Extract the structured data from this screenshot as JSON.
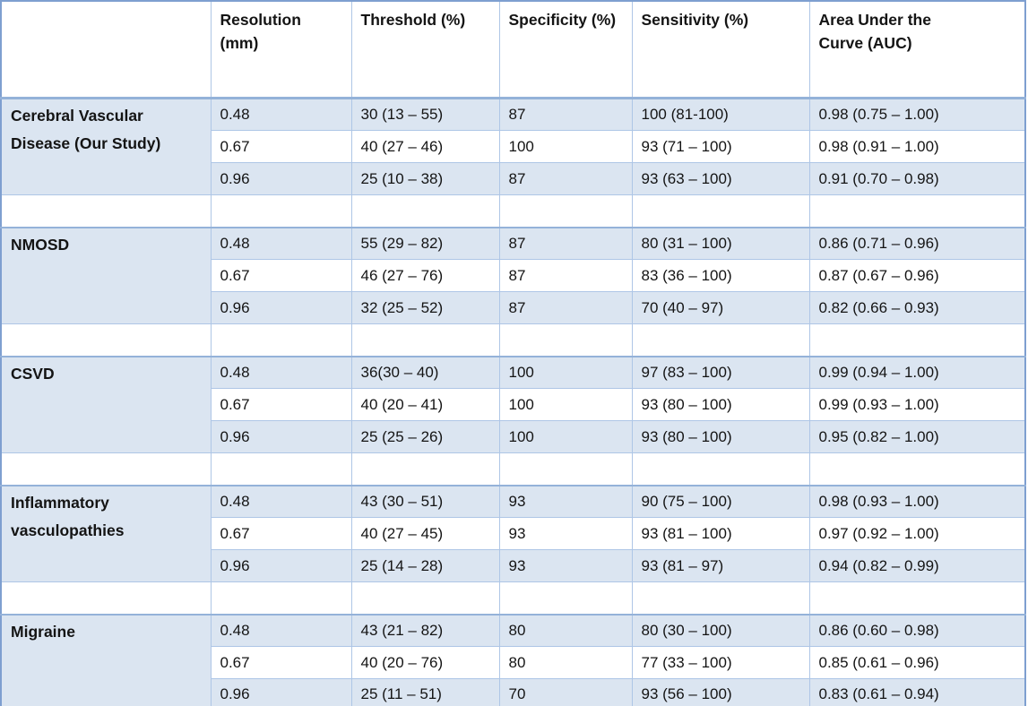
{
  "table": {
    "columns": [
      "",
      "Resolution (mm)",
      "Threshold (%)",
      "Specificity (%)",
      "Sensitivity (%)",
      "Area Under the Curve (AUC)"
    ],
    "groups": [
      {
        "label": "Cerebral Vascular Disease (Our Study)",
        "rows": [
          [
            "0.48",
            "30 (13 – 55)",
            "87",
            "100 (81-100)",
            "0.98 (0.75 – 1.00)"
          ],
          [
            "0.67",
            "40 (27 – 46)",
            "100",
            "93 (71 – 100)",
            "0.98 (0.91 – 1.00)"
          ],
          [
            "0.96",
            "25 (10 – 38)",
            "87",
            "93 (63 – 100)",
            "0.91 (0.70 – 0.98)"
          ]
        ]
      },
      {
        "label": "NMOSD",
        "rows": [
          [
            "0.48",
            "55 (29 – 82)",
            "87",
            "80 (31 – 100)",
            "0.86 (0.71 – 0.96)"
          ],
          [
            "0.67",
            "46 (27 – 76)",
            "87",
            "83 (36 – 100)",
            "0.87 (0.67 – 0.96)"
          ],
          [
            "0.96",
            "32 (25 – 52)",
            "87",
            "70 (40 – 97)",
            "0.82 (0.66 – 0.93)"
          ]
        ]
      },
      {
        "label": "CSVD",
        "rows": [
          [
            "0.48",
            "36(30 – 40)",
            "100",
            "97 (83 – 100)",
            "0.99 (0.94 – 1.00)"
          ],
          [
            "0.67",
            "40 (20 – 41)",
            "100",
            "93 (80 – 100)",
            "0.99 (0.93 – 1.00)"
          ],
          [
            "0.96",
            "25 (25 – 26)",
            "100",
            "93 (80 – 100)",
            "0.95 (0.82 – 1.00)"
          ]
        ]
      },
      {
        "label": "Inflammatory vasculopathies",
        "rows": [
          [
            "0.48",
            "43 (30 – 51)",
            "93",
            "90 (75 – 100)",
            "0.98 (0.93 – 1.00)"
          ],
          [
            "0.67",
            "40 (27 – 45)",
            "93",
            "93 (81 – 100)",
            "0.97 (0.92 – 1.00)"
          ],
          [
            "0.96",
            "25 (14 – 28)",
            "93",
            "93 (81 – 97)",
            "0.94 (0.82 – 0.99)"
          ]
        ]
      },
      {
        "label": "Migraine",
        "rows": [
          [
            "0.48",
            "43 (21 – 82)",
            "80",
            "80 (30 – 100)",
            "0.86 (0.60 – 0.98)"
          ],
          [
            "0.67",
            "40 (20 – 76)",
            "80",
            "77 (33 – 100)",
            "0.85 (0.61 – 0.96)"
          ],
          [
            "0.96",
            "25 (11 – 51)",
            "70",
            "93 (56 – 100)",
            "0.83 (0.61 – 0.94)"
          ]
        ]
      }
    ]
  },
  "colors": {
    "row_shade": "#dbe5f1",
    "grid_line": "#aec6e6",
    "accent_line": "#94b2d9",
    "outer_border": "#7e9fd0",
    "text": "#141414"
  }
}
